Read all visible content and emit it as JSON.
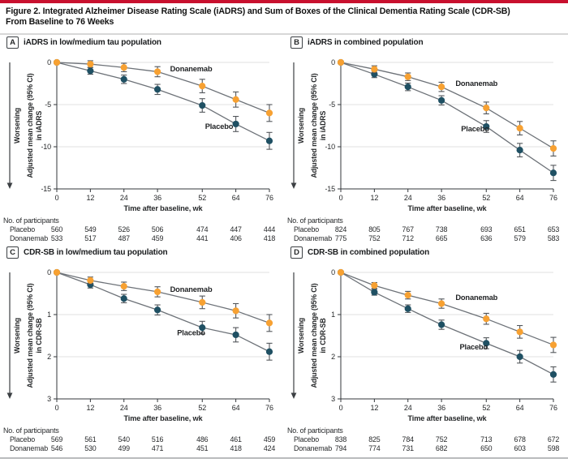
{
  "figure": {
    "title_line1": "Figure 2. Integrated Alzheimer Disease Rating Scale (iADRS) and Sum of Boxes of the Clinical Dementia Rating Scale (CDR-SB)",
    "title_line2": "From Baseline to 76 Weeks"
  },
  "colors": {
    "accent_red": "#C8102E",
    "donanemab": "#F7A132",
    "placebo": "#1F5063",
    "trend_line": "#6D7278",
    "error_bar": "#53575B",
    "grid": "#E0E0E0",
    "axis": "#33373B",
    "text": "#26282A"
  },
  "chart_data": [
    {
      "id": "A",
      "type": "line",
      "title": "iADRS in low/medium tau population",
      "xlabel": "Time after baseline, wk",
      "ylabel_line1": "Adjusted mean change (95% CI)",
      "ylabel_line2": "in iADRS",
      "worsening_label": "Worsening",
      "x": [
        0,
        12,
        24,
        36,
        52,
        64,
        76
      ],
      "ylim": [
        0,
        -15
      ],
      "yticks": [
        0,
        -5,
        -10,
        -15
      ],
      "legend_position": "inline",
      "grid": true,
      "series": [
        {
          "name": "Donanemab",
          "color_key": "donanemab",
          "values": [
            0,
            -0.2,
            -0.6,
            -1.1,
            -2.8,
            -4.4,
            -6.0
          ],
          "ci": [
            0,
            0.4,
            0.5,
            0.6,
            0.8,
            0.9,
            1.0
          ],
          "label_week": 40.5,
          "label_value": -0.75
        },
        {
          "name": "Placebo",
          "color_key": "placebo",
          "values": [
            0,
            -1.0,
            -2.0,
            -3.2,
            -5.1,
            -7.3,
            -9.3
          ],
          "ci": [
            0,
            0.4,
            0.5,
            0.6,
            0.8,
            0.9,
            1.0
          ],
          "label_week": 53,
          "label_value": -7.6
        }
      ],
      "participants": {
        "heading": "No. of participants",
        "rows": [
          {
            "label": "Placebo",
            "values": [
              "560",
              "549",
              "526",
              "506",
              "474",
              "447",
              "444"
            ]
          },
          {
            "label": "Donanemab",
            "values": [
              "533",
              "517",
              "487",
              "459",
              "441",
              "406",
              "418"
            ]
          }
        ]
      }
    },
    {
      "id": "B",
      "type": "line",
      "title": "iADRS in combined population",
      "xlabel": "Time after baseline, wk",
      "ylabel_line1": "Adjusted mean change (95% CI)",
      "ylabel_line2": "in iADRS",
      "worsening_label": "Worsening",
      "x": [
        0,
        12,
        24,
        36,
        52,
        64,
        76
      ],
      "ylim": [
        0,
        -15
      ],
      "yticks": [
        0,
        -5,
        -10,
        -15
      ],
      "legend_position": "inline",
      "grid": true,
      "series": [
        {
          "name": "Donanemab",
          "color_key": "donanemab",
          "values": [
            0,
            -0.8,
            -1.7,
            -2.9,
            -5.4,
            -7.8,
            -10.2
          ],
          "ci": [
            0,
            0.4,
            0.45,
            0.55,
            0.7,
            0.8,
            0.9
          ],
          "label_week": 41,
          "label_value": -2.5
        },
        {
          "name": "Placebo",
          "color_key": "placebo",
          "values": [
            0,
            -1.4,
            -2.9,
            -4.5,
            -7.6,
            -10.4,
            -13.1
          ],
          "ci": [
            0,
            0.4,
            0.45,
            0.55,
            0.7,
            0.8,
            0.9
          ],
          "label_week": 43,
          "label_value": -7.9
        }
      ],
      "participants": {
        "heading": "No. of participants",
        "rows": [
          {
            "label": "Placebo",
            "values": [
              "824",
              "805",
              "767",
              "738",
              "693",
              "651",
              "653"
            ]
          },
          {
            "label": "Donanemab",
            "values": [
              "775",
              "752",
              "712",
              "665",
              "636",
              "579",
              "583"
            ]
          }
        ]
      }
    },
    {
      "id": "C",
      "type": "line",
      "title": "CDR-SB in low/medium tau population",
      "xlabel": "Time after baseline, wk",
      "ylabel_line1": "Adjusted mean change (95% CI)",
      "ylabel_line2": "in CDR-SB",
      "worsening_label": "Worsening",
      "x": [
        0,
        12,
        24,
        36,
        52,
        64,
        76
      ],
      "ylim": [
        0,
        3
      ],
      "yticks": [
        0,
        1,
        2,
        3
      ],
      "legend_position": "inline",
      "grid": true,
      "series": [
        {
          "name": "Donanemab",
          "color_key": "donanemab",
          "values": [
            0,
            0.19,
            0.33,
            0.46,
            0.71,
            0.91,
            1.2
          ],
          "ci": [
            0,
            0.08,
            0.1,
            0.12,
            0.15,
            0.17,
            0.2
          ],
          "label_week": 40.5,
          "label_value": 0.4
        },
        {
          "name": "Placebo",
          "color_key": "placebo",
          "values": [
            0,
            0.29,
            0.62,
            0.89,
            1.31,
            1.48,
            1.88
          ],
          "ci": [
            0,
            0.08,
            0.1,
            0.12,
            0.15,
            0.17,
            0.2
          ],
          "label_week": 43,
          "label_value": 1.43
        }
      ],
      "participants": {
        "heading": "No. of participants",
        "rows": [
          {
            "label": "Placebo",
            "values": [
              "569",
              "561",
              "540",
              "516",
              "486",
              "461",
              "459"
            ]
          },
          {
            "label": "Donanemab",
            "values": [
              "546",
              "530",
              "499",
              "471",
              "451",
              "418",
              "424"
            ]
          }
        ]
      }
    },
    {
      "id": "D",
      "type": "line",
      "title": "CDR-SB in combined population",
      "xlabel": "Time after baseline, wk",
      "ylabel_line1": "Adjusted mean change (95% CI)",
      "ylabel_line2": "in CDR-SB",
      "worsening_label": "Worsening",
      "x": [
        0,
        12,
        24,
        36,
        52,
        64,
        76
      ],
      "ylim": [
        0,
        3
      ],
      "yticks": [
        0,
        1,
        2,
        3
      ],
      "legend_position": "inline",
      "grid": true,
      "series": [
        {
          "name": "Donanemab",
          "color_key": "donanemab",
          "values": [
            0,
            0.31,
            0.54,
            0.74,
            1.1,
            1.41,
            1.72
          ],
          "ci": [
            0,
            0.07,
            0.09,
            0.11,
            0.13,
            0.15,
            0.18
          ],
          "label_week": 41,
          "label_value": 0.6
        },
        {
          "name": "Placebo",
          "color_key": "placebo",
          "values": [
            0,
            0.47,
            0.86,
            1.24,
            1.68,
            2.0,
            2.42
          ],
          "ci": [
            0,
            0.07,
            0.09,
            0.11,
            0.13,
            0.15,
            0.18
          ],
          "label_week": 42.5,
          "label_value": 1.77
        }
      ],
      "participants": {
        "heading": "No. of participants",
        "rows": [
          {
            "label": "Placebo",
            "values": [
              "838",
              "825",
              "784",
              "752",
              "713",
              "678",
              "672"
            ]
          },
          {
            "label": "Donanemab",
            "values": [
              "794",
              "774",
              "731",
              "682",
              "650",
              "603",
              "598"
            ]
          }
        ]
      }
    }
  ]
}
